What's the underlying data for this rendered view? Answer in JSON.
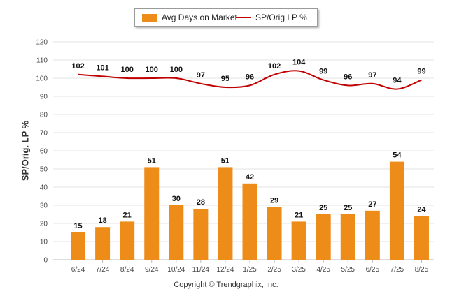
{
  "chart_data": {
    "type": "bar",
    "categories": [
      "6/24",
      "7/24",
      "8/24",
      "9/24",
      "10/24",
      "11/24",
      "12/24",
      "1/25",
      "2/25",
      "3/25",
      "4/25",
      "5/25",
      "6/25",
      "7/25",
      "8/25"
    ],
    "series": [
      {
        "name": "Avg Days on Market",
        "type": "bar",
        "color": "#ee8c1a",
        "values": [
          15,
          18,
          21,
          51,
          30,
          28,
          51,
          42,
          29,
          21,
          25,
          25,
          27,
          54,
          24
        ]
      },
      {
        "name": "SP/Orig LP %",
        "type": "line",
        "color": "#c00000",
        "values": [
          102,
          101,
          100,
          100,
          100,
          97,
          95,
          96,
          102,
          104,
          99,
          96,
          97,
          94,
          99
        ]
      }
    ],
    "ylabel": "SP/Orig. LP %",
    "ylim": [
      0,
      120
    ],
    "yticks": [
      0,
      10,
      20,
      30,
      40,
      50,
      60,
      70,
      80,
      90,
      100,
      110,
      120
    ],
    "grid": true,
    "legend_position": "top-center"
  },
  "legend": {
    "bar_label": "Avg Days on Market",
    "line_label": "SP/Orig LP %"
  },
  "copyright": "Copyright © Trendgraphix, Inc."
}
